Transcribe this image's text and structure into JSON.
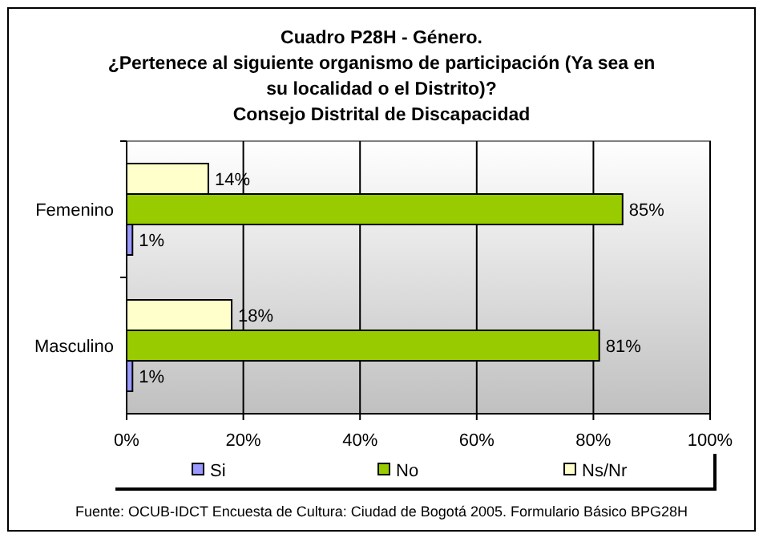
{
  "chart_data": {
    "type": "bar",
    "orientation": "horizontal",
    "title": "Cuadro P28H - Género.\n¿Pertenece al siguiente organismo de participación (Ya sea en\nsu localidad o el Distrito)?\nConsejo Distrital de Discapacidad",
    "categories": [
      "Femenino",
      "Masculino"
    ],
    "series": [
      {
        "name": "Si",
        "color": "#9999ff",
        "values": [
          1,
          1
        ],
        "value_labels": [
          "1%",
          "1%"
        ]
      },
      {
        "name": "No",
        "color": "#99cc00",
        "values": [
          85,
          81
        ],
        "value_labels": [
          "85%",
          "81%"
        ]
      },
      {
        "name": "Ns/Nr",
        "color": "#ffffcc",
        "values": [
          14,
          18
        ],
        "value_labels": [
          "14%",
          "18%"
        ]
      }
    ],
    "xlim": [
      0,
      100
    ],
    "xticks": [
      {
        "value": 0,
        "label": "0%"
      },
      {
        "value": 20,
        "label": "20%"
      },
      {
        "value": 40,
        "label": "40%"
      },
      {
        "value": 60,
        "label": "60%"
      },
      {
        "value": 80,
        "label": "80%"
      },
      {
        "value": 100,
        "label": "100%"
      }
    ],
    "grid": "x",
    "legend": "bottom",
    "annotations": [
      "Fuente: OCUB-IDCT Encuesta de Cultura: Ciudad de Bogotá 2005. Formulario Básico BPG28H"
    ]
  }
}
